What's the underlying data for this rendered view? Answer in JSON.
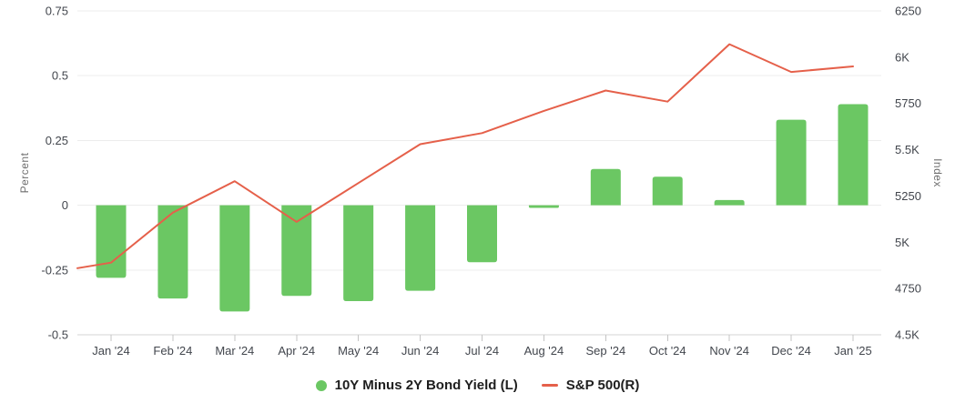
{
  "chart_data": {
    "type": "combo_bar_line",
    "title": "",
    "categories": [
      "Jan '24",
      "Feb '24",
      "Mar '24",
      "Apr '24",
      "May '24",
      "Jun '24",
      "Jul '24",
      "Aug '24",
      "Sep '24",
      "Oct '24",
      "Nov '24",
      "Dec '24",
      "Jan '25"
    ],
    "series": [
      {
        "name": "10Y Minus 2Y Bond Yield (L)",
        "type": "bar",
        "axis": "left",
        "color": "#6bc763",
        "values": [
          -0.28,
          -0.36,
          -0.41,
          -0.35,
          -0.37,
          -0.33,
          -0.22,
          -0.01,
          0.14,
          0.11,
          0.02,
          0.33,
          0.39
        ]
      },
      {
        "name": "S&P 500(R)",
        "type": "line",
        "axis": "right",
        "color": "#e5604a",
        "values": [
          4890,
          5160,
          5330,
          5110,
          5320,
          5530,
          5590,
          5710,
          5820,
          5760,
          6070,
          5920,
          5950
        ],
        "entry_value_at_left_edge": 4860
      }
    ],
    "left_axis": {
      "title": "Percent",
      "min": -0.5,
      "max": 0.75,
      "tick_labels": [
        "0.75",
        "0.5",
        "0.25",
        "0",
        "-0.25",
        "-0.5"
      ]
    },
    "right_axis": {
      "title": "Index",
      "min": 4500,
      "max": 6250,
      "tick_labels": [
        "6250",
        "6K",
        "5750",
        "5.5K",
        "5250",
        "5K",
        "4750",
        "4.5K"
      ]
    },
    "grid": true,
    "legend_position": "bottom"
  },
  "legend": {
    "items": [
      {
        "marker": "circle-icon",
        "series": 0
      },
      {
        "marker": "line-dash-icon",
        "series": 1
      }
    ]
  },
  "colors": {
    "background": "#ffffff",
    "gridline": "#ececec",
    "axis_line": "#d6d6d6",
    "tick_mark": "#c4c4c4",
    "tick_text": "#42464d",
    "axis_title_text": "#6e6e6e",
    "legend_text": "#1e1e1e",
    "bar": "#6bc763",
    "line": "#e5604a"
  }
}
